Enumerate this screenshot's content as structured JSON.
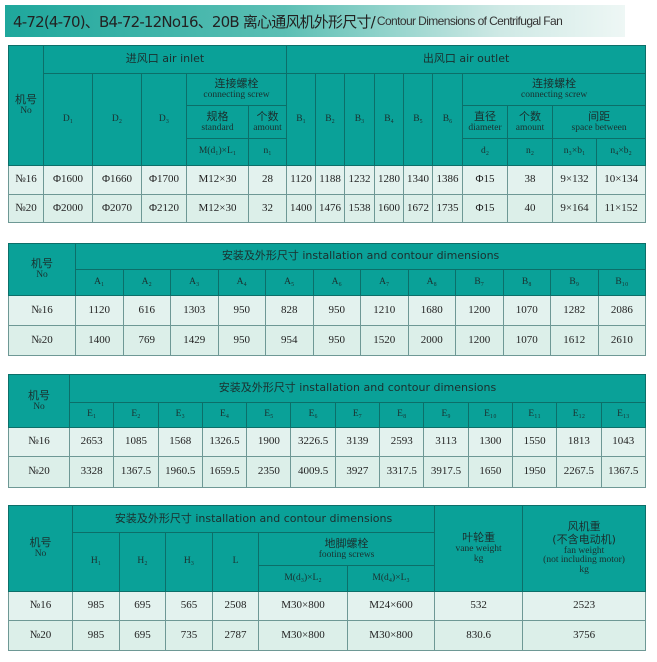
{
  "title": {
    "zh": "4-72(4-70)、B4-72-12No16、20B 离心通风机外形尺寸/",
    "en": "Contour Dimensions of Centrifugal Fan"
  },
  "colors": {
    "header": "#0aa198",
    "row": "#dcefe9"
  },
  "table1": {
    "no_zh": "机号",
    "no_en": "No",
    "inlet": "进风口 air inlet",
    "outlet": "出风口 air outlet",
    "screw_zh": "连接螺栓",
    "screw_en": "connecting screw",
    "D": [
      "D₁",
      "D₂",
      "D₃"
    ],
    "std_zh": "规格",
    "std_en": "standard",
    "amt_zh": "个数",
    "amt_en": "amount",
    "m1": "M(d₁)×L₁",
    "n1": "n₁",
    "B": [
      "B₁",
      "B₂",
      "B₃",
      "B₄",
      "B₅",
      "B₆"
    ],
    "dia_zh": "直径",
    "dia_en": "diameter",
    "amt2_zh": "个数",
    "amt2_en": "amount",
    "sp_zh": "间距",
    "sp_en": "space between",
    "d2": "d₂",
    "n2": "n₂",
    "n3b1": "n₃×b₁",
    "n4b2": "n₄×b₂",
    "rows": [
      [
        "№16",
        "Φ1600",
        "Φ1660",
        "Φ1700",
        "M12×30",
        "28",
        "1120",
        "1188",
        "1232",
        "1280",
        "1340",
        "1386",
        "Φ15",
        "38",
        "9×132",
        "10×134"
      ],
      [
        "№20",
        "Φ2000",
        "Φ2070",
        "Φ2120",
        "M12×30",
        "32",
        "1400",
        "1476",
        "1538",
        "1600",
        "1672",
        "1735",
        "Φ15",
        "40",
        "9×164",
        "11×152"
      ]
    ]
  },
  "table2": {
    "no_zh": "机号",
    "no_en": "No",
    "group": "安装及外形尺寸 installation and contour dimensions",
    "cols": [
      "A₁",
      "A₂",
      "A₃",
      "A₄",
      "A₅",
      "A₆",
      "A₇",
      "A₈",
      "B₇",
      "B₈",
      "B₉",
      "B₁₀"
    ],
    "rows": [
      [
        "№16",
        "1120",
        "616",
        "1303",
        "950",
        "828",
        "950",
        "1210",
        "1680",
        "1200",
        "1070",
        "1282",
        "2086"
      ],
      [
        "№20",
        "1400",
        "769",
        "1429",
        "950",
        "954",
        "950",
        "1520",
        "2000",
        "1200",
        "1070",
        "1612",
        "2610"
      ]
    ]
  },
  "table3": {
    "no_zh": "机号",
    "no_en": "No",
    "group": "安装及外形尺寸 installation and contour dimensions",
    "cols": [
      "E₁",
      "E₂",
      "E₃",
      "E₄",
      "E₅",
      "E₆",
      "E₇",
      "E₈",
      "E₉",
      "E₁₀",
      "E₁₁",
      "E₁₂",
      "E₁₃"
    ],
    "rows": [
      [
        "№16",
        "2653",
        "1085",
        "1568",
        "1326.5",
        "1900",
        "3226.5",
        "3139",
        "2593",
        "3113",
        "1300",
        "1550",
        "1813",
        "1043"
      ],
      [
        "№20",
        "3328",
        "1367.5",
        "1960.5",
        "1659.5",
        "2350",
        "4009.5",
        "3927",
        "3317.5",
        "3917.5",
        "1650",
        "1950",
        "2267.5",
        "1367.5"
      ]
    ]
  },
  "table4": {
    "no_zh": "机号",
    "no_en": "No",
    "group": "安装及外形尺寸 installation and contour dimensions",
    "cols": [
      "H₁",
      "H₂",
      "H₃",
      "L"
    ],
    "foot_zh": "地脚螺栓",
    "foot_en": "footing screws",
    "m3": "M(d₃)×L₂",
    "m4": "M(d₄)×L₃",
    "vane_zh": "叶轮重",
    "vane_en": "vane weight",
    "vane_unit": "kg",
    "fan_zh": "风机重",
    "fan_zh2": "(不含电动机)",
    "fan_en": "fan weight",
    "fan_en2": "(not including motor)",
    "fan_unit": "kg",
    "rows": [
      [
        "№16",
        "985",
        "695",
        "565",
        "2508",
        "M30×800",
        "M24×600",
        "532",
        "2523"
      ],
      [
        "№20",
        "985",
        "695",
        "735",
        "2787",
        "M30×800",
        "M30×800",
        "830.6",
        "3756"
      ]
    ]
  }
}
